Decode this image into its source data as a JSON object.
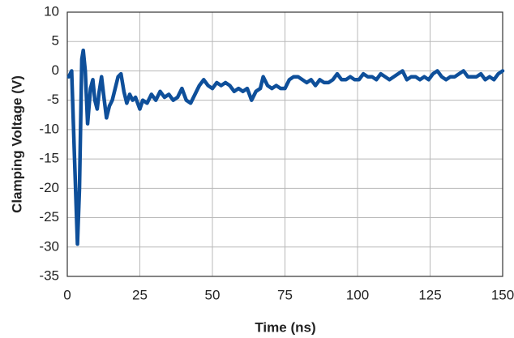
{
  "chart_data": {
    "type": "line",
    "xlabel": "Time (ns)",
    "ylabel": "Clamping Voltage (V)",
    "xlim": [
      0,
      150
    ],
    "xticks": [
      0,
      25,
      50,
      75,
      100,
      125,
      150
    ],
    "ylim": [
      -35,
      10
    ],
    "yticks": [
      10,
      5,
      0,
      -5,
      -10,
      -15,
      -20,
      -25,
      -30,
      -35
    ],
    "grid": true,
    "x": [
      0.5,
      1.5,
      2.5,
      3.5,
      4.2,
      5,
      5.5,
      6.2,
      7,
      8,
      8.8,
      9.5,
      10.3,
      11,
      11.8,
      12.5,
      13.5,
      14.5,
      15.5,
      16.5,
      17.5,
      18.5,
      19.5,
      20.5,
      21.5,
      22.5,
      23.5,
      25,
      26,
      27.5,
      29,
      30.5,
      32,
      33.5,
      35,
      36.5,
      38,
      39.5,
      41,
      42.5,
      44,
      45.5,
      47,
      48.5,
      50,
      51.5,
      53,
      54.5,
      56,
      57.5,
      59,
      60.5,
      62,
      63.5,
      65,
      66.5,
      67.5,
      69,
      70.5,
      72,
      73.5,
      75,
      76.5,
      78,
      79.5,
      81,
      82.5,
      84,
      85.5,
      87,
      88.5,
      90,
      91.5,
      93,
      94.5,
      96,
      97.5,
      99,
      100.5,
      102,
      103.5,
      105,
      106.5,
      108,
      109.5,
      111,
      112.5,
      114,
      115.5,
      117,
      118.5,
      120,
      121.5,
      123,
      124.5,
      126,
      127.5,
      129,
      130.5,
      132,
      133.5,
      135,
      136.5,
      138,
      139.5,
      141,
      142.5,
      144,
      145.5,
      147,
      148.5,
      150
    ],
    "series": [
      {
        "name": "Clamping Voltage",
        "color": "#0e4f9a",
        "values": [
          -1,
          0,
          -15,
          -29.5,
          -20,
          2,
          3.5,
          0,
          -9,
          -3,
          -1.5,
          -5,
          -6.5,
          -3.5,
          -1,
          -4,
          -8,
          -6,
          -5,
          -3,
          -1,
          -0.5,
          -3.5,
          -5.5,
          -4,
          -5,
          -4.5,
          -6.5,
          -5,
          -5.5,
          -4,
          -5,
          -3.5,
          -4.5,
          -4,
          -5,
          -4.5,
          -3,
          -5,
          -5.5,
          -4,
          -2.5,
          -1.5,
          -2.5,
          -3,
          -2,
          -2.5,
          -2,
          -2.5,
          -3.5,
          -3,
          -3.5,
          -3,
          -5,
          -3.5,
          -3,
          -1,
          -2.5,
          -3,
          -2.5,
          -3,
          -3,
          -1.5,
          -1,
          -1,
          -1.5,
          -2,
          -1.5,
          -2.5,
          -1.5,
          -2,
          -2,
          -1.5,
          -0.5,
          -1.5,
          -1.5,
          -1,
          -1.5,
          -1.5,
          -0.5,
          -1,
          -1,
          -1.5,
          -0.5,
          -1,
          -1.5,
          -1,
          -0.5,
          0,
          -1.5,
          -1,
          -1,
          -1.5,
          -1,
          -1.5,
          -0.5,
          0,
          -1,
          -1.5,
          -1,
          -1,
          -0.5,
          0,
          -1,
          -1,
          -1,
          -0.5,
          -1.5,
          -1,
          -1.5,
          -0.5,
          0
        ]
      }
    ]
  }
}
